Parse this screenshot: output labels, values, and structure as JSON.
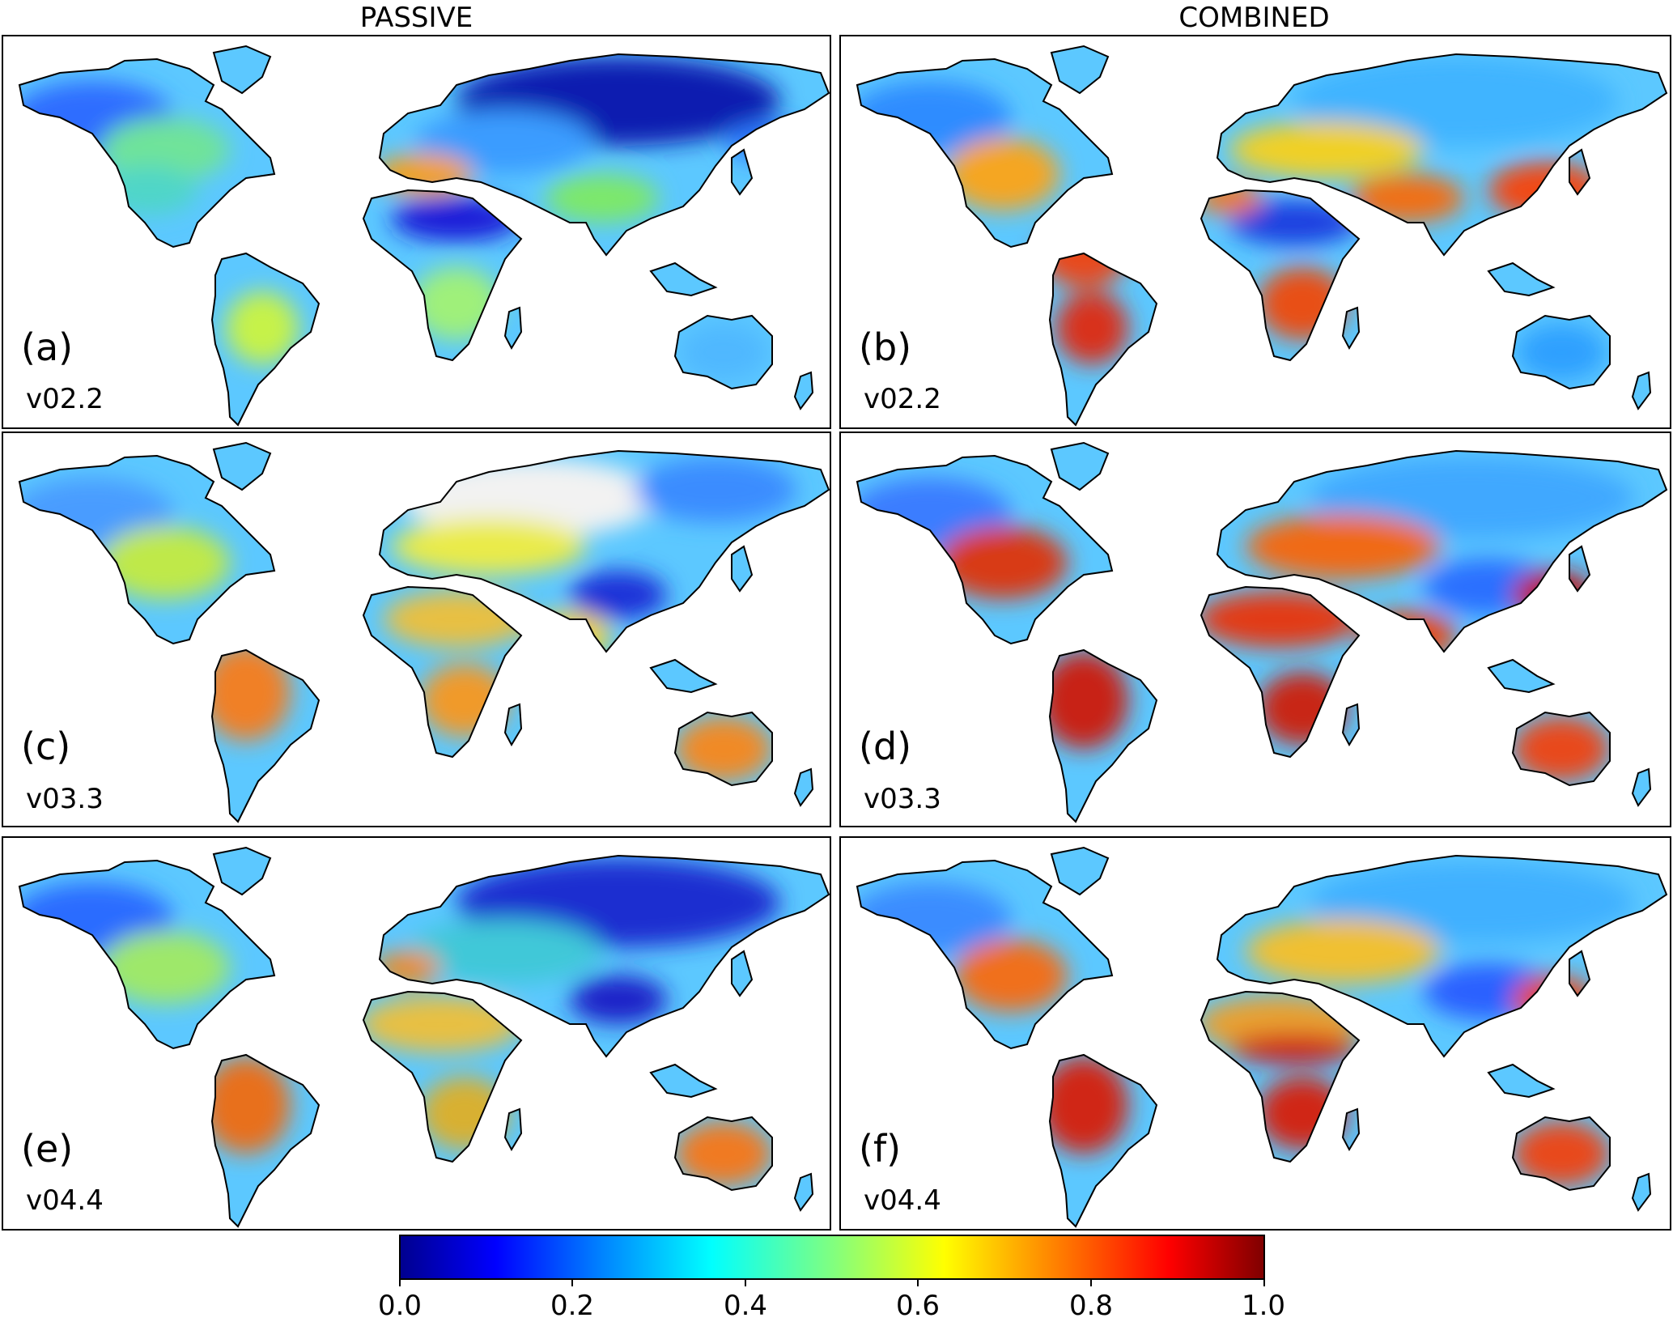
{
  "column_titles": {
    "left": "PASSIVE",
    "right": "COMBINED"
  },
  "panels": [
    {
      "letter": "(a)",
      "version": "v02.2",
      "product": "PASSIVE"
    },
    {
      "letter": "(b)",
      "version": "v02.2",
      "product": "COMBINED"
    },
    {
      "letter": "(c)",
      "version": "v03.3",
      "product": "PASSIVE"
    },
    {
      "letter": "(d)",
      "version": "v03.3",
      "product": "COMBINED"
    },
    {
      "letter": "(e)",
      "version": "v04.4",
      "product": "PASSIVE"
    },
    {
      "letter": "(f)",
      "version": "v04.4",
      "product": "COMBINED"
    }
  ],
  "colorbar": {
    "ticks": [
      "0.0",
      "0.2",
      "0.4",
      "0.6",
      "0.8",
      "1.0"
    ],
    "range": [
      0.0,
      1.0
    ],
    "colormap": "jet"
  },
  "colors": {
    "low": "#00008f",
    "mid": "#80ff80",
    "high": "#800000",
    "background": "#ffffff",
    "outline": "#000000"
  }
}
